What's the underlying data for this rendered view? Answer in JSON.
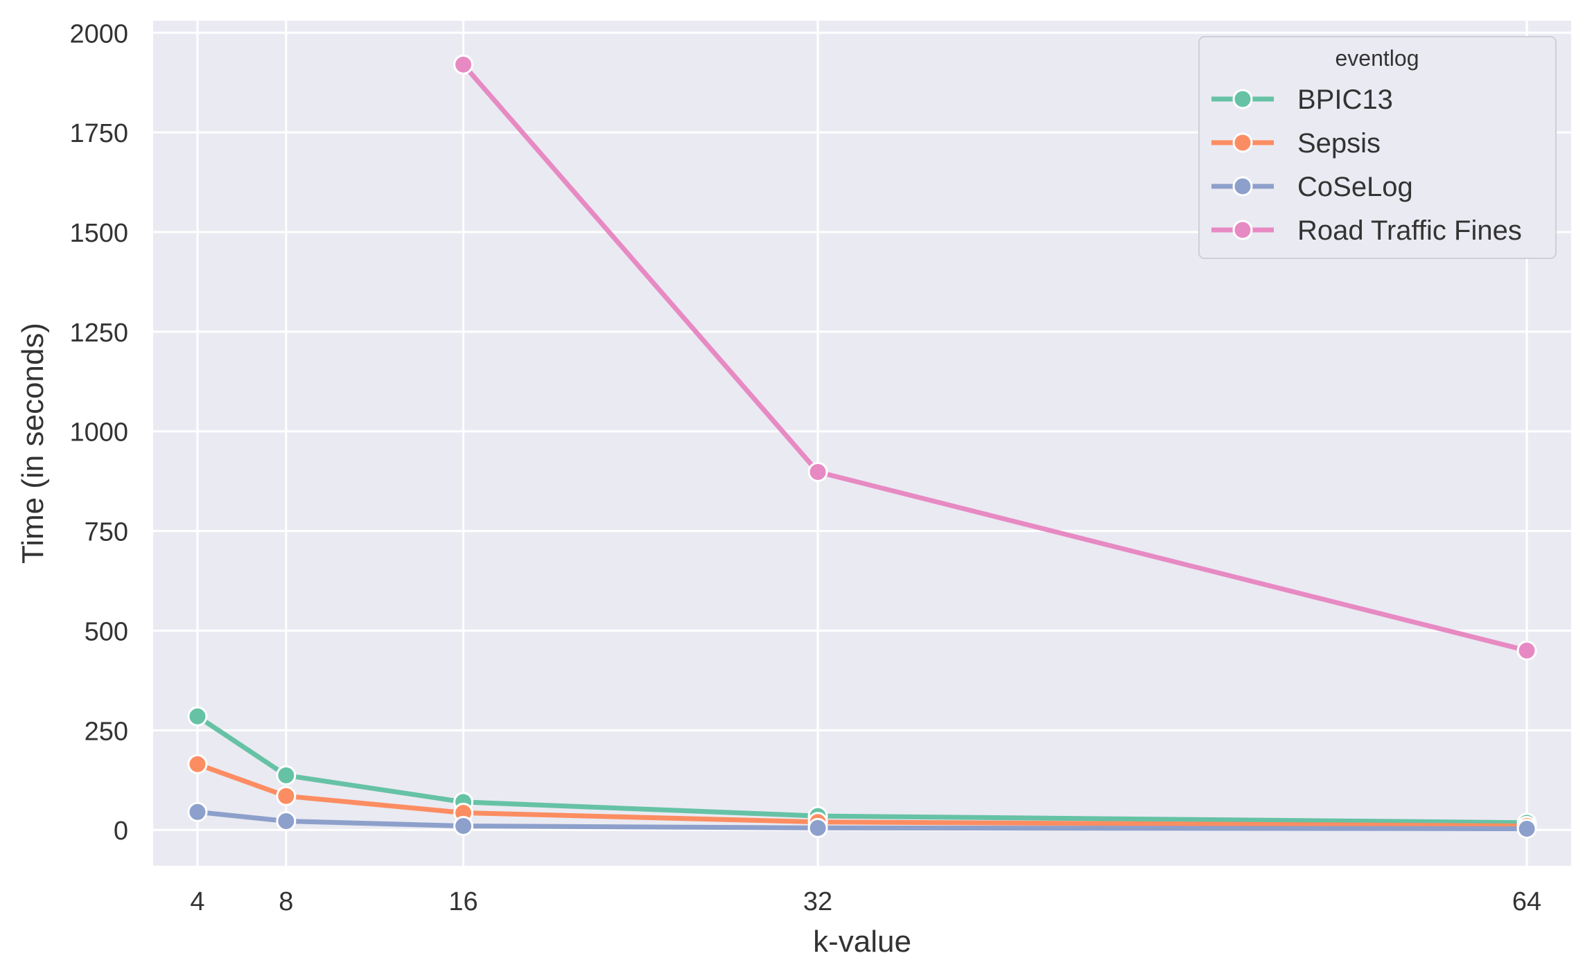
{
  "chart_data": {
    "type": "line",
    "xlabel": "k-value",
    "ylabel": "Time (in seconds)",
    "x": [
      4,
      8,
      16,
      32,
      64
    ],
    "xticks": [
      "4",
      "8",
      "16",
      "32",
      "64"
    ],
    "yticks": [
      0,
      250,
      500,
      750,
      1000,
      1250,
      1500,
      1750,
      2000
    ],
    "xlim": [
      2,
      66
    ],
    "ylim": [
      -90,
      2030
    ],
    "grid": true,
    "legend": {
      "title": "eventlog",
      "placement": "top-right"
    },
    "series": [
      {
        "name": "BPIC13",
        "color": "#66c2a5",
        "points": [
          [
            4,
            285
          ],
          [
            8,
            137
          ],
          [
            16,
            70
          ],
          [
            32,
            35
          ],
          [
            64,
            18
          ]
        ]
      },
      {
        "name": "Sepsis",
        "color": "#fc8d62",
        "points": [
          [
            4,
            165
          ],
          [
            8,
            85
          ],
          [
            16,
            43
          ],
          [
            32,
            20
          ],
          [
            64,
            10
          ]
        ]
      },
      {
        "name": "CoSeLog",
        "color": "#8da0cb",
        "points": [
          [
            4,
            45
          ],
          [
            8,
            22
          ],
          [
            16,
            10
          ],
          [
            32,
            5
          ],
          [
            64,
            3
          ]
        ]
      },
      {
        "name": "Road Traffic Fines",
        "color": "#e78ac3",
        "points": [
          [
            16,
            1920
          ],
          [
            32,
            898
          ],
          [
            64,
            450
          ]
        ]
      }
    ]
  }
}
